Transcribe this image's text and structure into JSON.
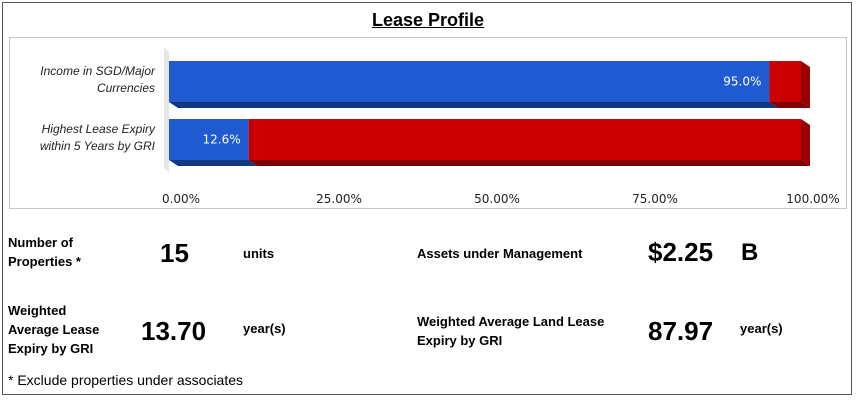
{
  "title": "Lease Profile",
  "chart_data": {
    "type": "bar",
    "orientation": "horizontal",
    "stacked": true,
    "categories": [
      "Income in SGD/Major Currencies",
      "Highest Lease Expiry within 5 Years by GRI"
    ],
    "category_lines": [
      [
        "Income in SGD/Major",
        "Currencies"
      ],
      [
        "Highest Lease Expiry",
        "within 5 Years by GRI"
      ]
    ],
    "series": [
      {
        "values": [
          95.0,
          12.6
        ],
        "color": "#1f5ad1"
      },
      {
        "values": [
          5.0,
          87.4
        ],
        "color": "#cc0000"
      }
    ],
    "data_labels": [
      "95.0%",
      "12.6%"
    ],
    "xticks": [
      "0.00%",
      "25.00%",
      "50.00%",
      "75.00%",
      "100.00%"
    ],
    "xlim": [
      0,
      100
    ],
    "grid": false
  },
  "stats": {
    "properties": {
      "label_lines": [
        "Number of",
        "Properties *"
      ],
      "value": "15",
      "unit": "units"
    },
    "aum": {
      "label": "Assets under Management",
      "value": "$2.25",
      "unit": "B"
    },
    "wale": {
      "label_lines": [
        "Weighted",
        "Average Lease",
        "Expiry by GRI"
      ],
      "value": "13.70",
      "unit": "year(s)"
    },
    "walle": {
      "label_lines": [
        "Weighted Average Land Lease",
        "Expiry by GRI"
      ],
      "value": "87.97",
      "unit": "year(s)"
    }
  },
  "footnote": "* Exclude properties under associates"
}
